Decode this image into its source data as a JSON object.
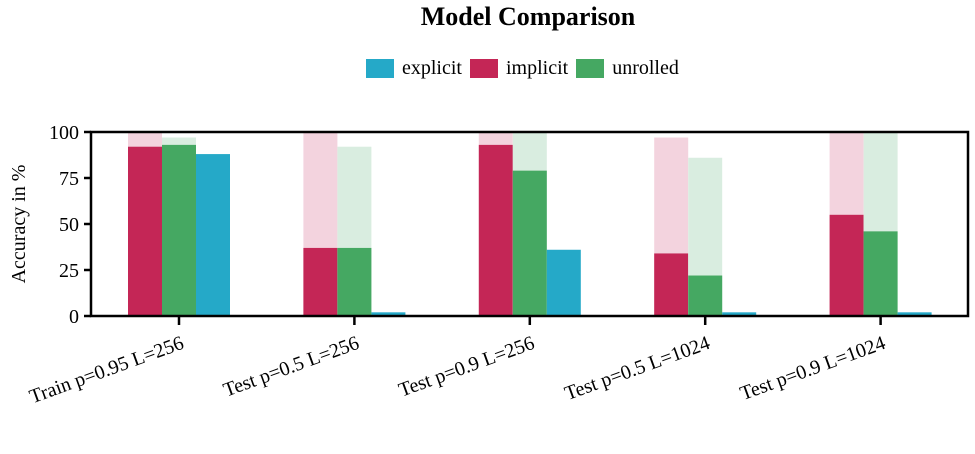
{
  "chart_data": {
    "type": "bar",
    "title": "Model Comparison",
    "ylabel": "Accuracy in %",
    "xlabel": "",
    "ylim": [
      0,
      100
    ],
    "yticks": [
      0,
      25,
      50,
      75,
      100
    ],
    "legend_position": "top-center",
    "categories": [
      "Train p=0.95 L=256",
      "Test p=0.5 L=256",
      "Test p=0.9 L=256",
      "Test p=0.5 L=1024",
      "Test p=0.9 L=1024"
    ],
    "series": [
      {
        "name": "explicit",
        "color": "#25a9c8",
        "values": [
          88,
          2,
          36,
          2,
          2
        ]
      },
      {
        "name": "implicit",
        "color": "#c42656",
        "values": [
          92,
          37,
          93,
          34,
          55
        ],
        "upper_values": [
          100,
          100,
          100,
          97,
          100
        ],
        "upper_color": "#f3d3de"
      },
      {
        "name": "unrolled",
        "color": "#45a862",
        "values": [
          93,
          37,
          79,
          22,
          46
        ],
        "upper_values": [
          97,
          92,
          100,
          86,
          100
        ],
        "upper_color": "#d9ede0"
      }
    ]
  }
}
